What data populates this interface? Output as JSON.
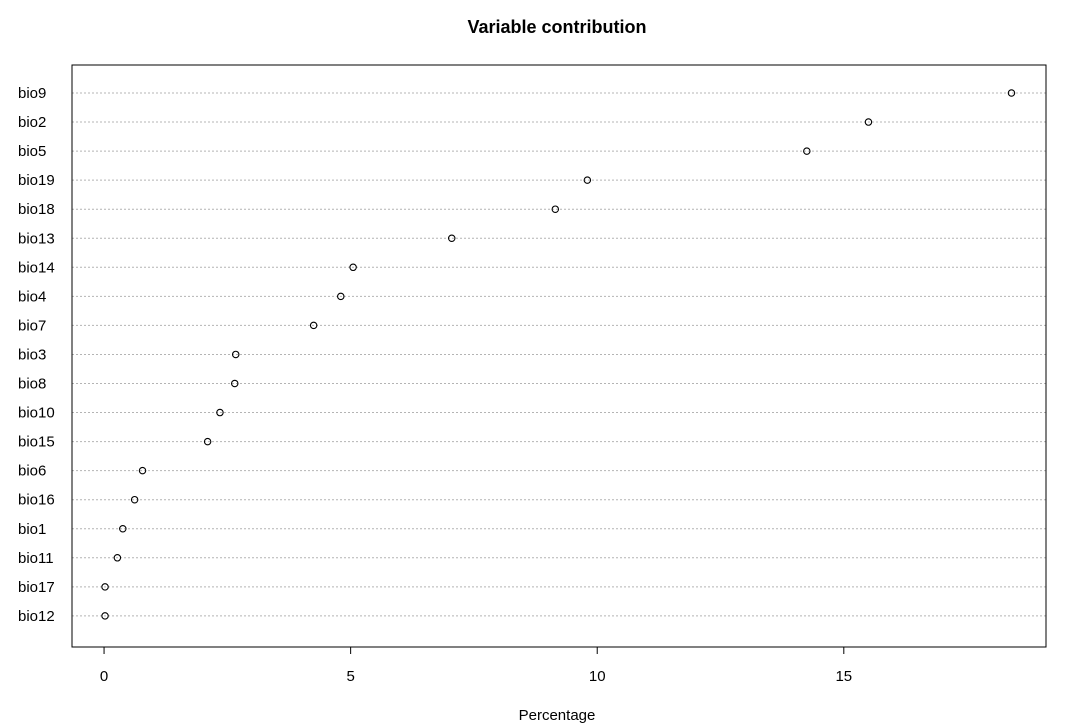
{
  "chart_data": {
    "type": "scatter",
    "title": "Variable contribution",
    "xlabel": "Percentage",
    "ylabel": "",
    "xlim": [
      -0.65,
      19.1
    ],
    "xticks": [
      0,
      5,
      10,
      15
    ],
    "grid": "horizontal-dotted",
    "categories": [
      "bio9",
      "bio2",
      "bio5",
      "bio19",
      "bio18",
      "bio13",
      "bio14",
      "bio4",
      "bio7",
      "bio3",
      "bio8",
      "bio10",
      "bio15",
      "bio6",
      "bio16",
      "bio1",
      "bio11",
      "bio17",
      "bio12"
    ],
    "values": [
      18.4,
      15.5,
      14.25,
      9.8,
      9.15,
      7.05,
      5.05,
      4.8,
      4.25,
      2.67,
      2.65,
      2.35,
      2.1,
      0.78,
      0.62,
      0.38,
      0.27,
      0.02,
      0.02
    ]
  }
}
